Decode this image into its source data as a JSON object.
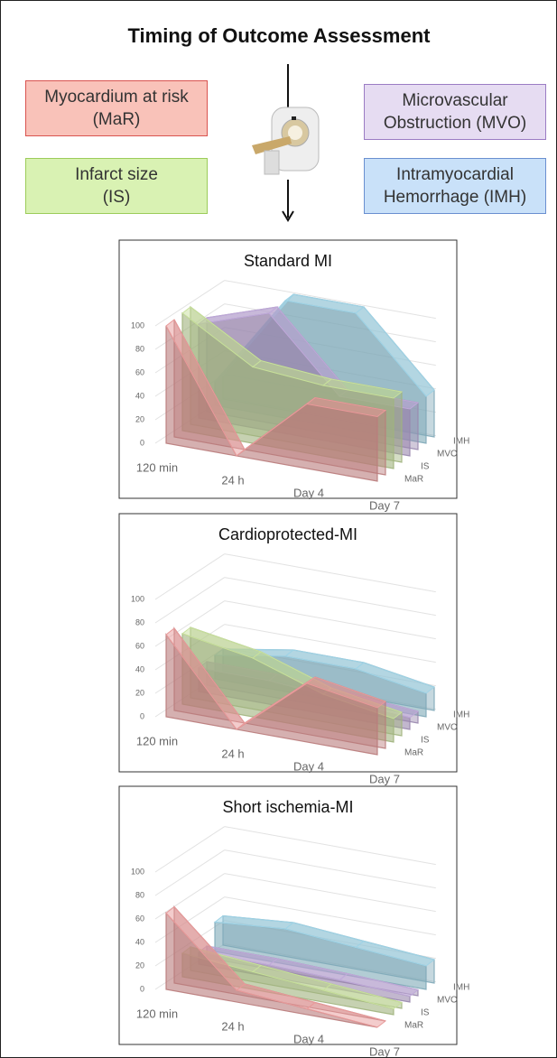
{
  "title": "Timing of Outcome Assessment",
  "legend_boxes": [
    {
      "lines": [
        "Myocardium at risk",
        "(MaR)"
      ],
      "color": "#f9c2b9",
      "border": "#d9534f"
    },
    {
      "lines": [
        "Infarct size",
        "(IS)"
      ],
      "color": "#d9f2b3",
      "border": "#9ccc5a"
    },
    {
      "lines": [
        "Microvascular",
        "Obstruction (MVO)"
      ],
      "color": "#e6dcf2",
      "border": "#9b7cc4"
    },
    {
      "lines": [
        "Intramyocardial",
        "Hemorrhage (IMH)"
      ],
      "color": "#c9e1f9",
      "border": "#6a8fd0"
    }
  ],
  "chart_data": [
    {
      "type": "area3d",
      "title": "Standard MI",
      "categories": [
        "120 min",
        "24 h",
        "Day 4",
        "Day 7"
      ],
      "ylim": [
        0,
        100
      ],
      "yticks": [
        0,
        20,
        40,
        60,
        80,
        100
      ],
      "grid": true,
      "series": [
        {
          "name": "MaR",
          "color": "#e89a9a",
          "values": [
            100,
            0,
            55,
            55
          ]
        },
        {
          "name": "IS",
          "color": "#c8e09c",
          "values": [
            100,
            65,
            60,
            60
          ]
        },
        {
          "name": "MVO",
          "color": "#bfa9d9",
          "values": [
            80,
            100,
            40,
            40
          ]
        },
        {
          "name": "IMH",
          "color": "#9fd3e6",
          "values": [
            20,
            100,
            100,
            40
          ]
        }
      ]
    },
    {
      "type": "area3d",
      "title": "Cardioprotected-MI",
      "categories": [
        "120 min",
        "24 h",
        "Day 4",
        "Day 7"
      ],
      "ylim": [
        0,
        100
      ],
      "yticks": [
        0,
        20,
        40,
        60,
        80,
        100
      ],
      "grid": true,
      "series": [
        {
          "name": "MaR",
          "color": "#e89a9a",
          "values": [
            70,
            0,
            50,
            40
          ]
        },
        {
          "name": "IS",
          "color": "#c8e09c",
          "values": [
            60,
            50,
            30,
            20
          ]
        },
        {
          "name": "MVO",
          "color": "#bfa9d9",
          "values": [
            20,
            20,
            15,
            10
          ]
        },
        {
          "name": "IMH",
          "color": "#9fd3e6",
          "values": [
            20,
            30,
            30,
            20
          ]
        }
      ]
    },
    {
      "type": "area3d",
      "title": "Short ischemia-MI",
      "categories": [
        "120 min",
        "24 h",
        "Day 4",
        "Day 7"
      ],
      "ylim": [
        0,
        100
      ],
      "yticks": [
        0,
        20,
        40,
        60,
        80,
        100
      ],
      "grid": true,
      "series": [
        {
          "name": "MaR",
          "color": "#e89a9a",
          "values": [
            65,
            10,
            5,
            0
          ]
        },
        {
          "name": "IS",
          "color": "#c8e09c",
          "values": [
            20,
            15,
            10,
            5
          ]
        },
        {
          "name": "MVO",
          "color": "#bfa9d9",
          "values": [
            10,
            10,
            8,
            5
          ]
        },
        {
          "name": "IMH",
          "color": "#9fd3e6",
          "values": [
            25,
            30,
            25,
            20
          ]
        }
      ]
    }
  ]
}
